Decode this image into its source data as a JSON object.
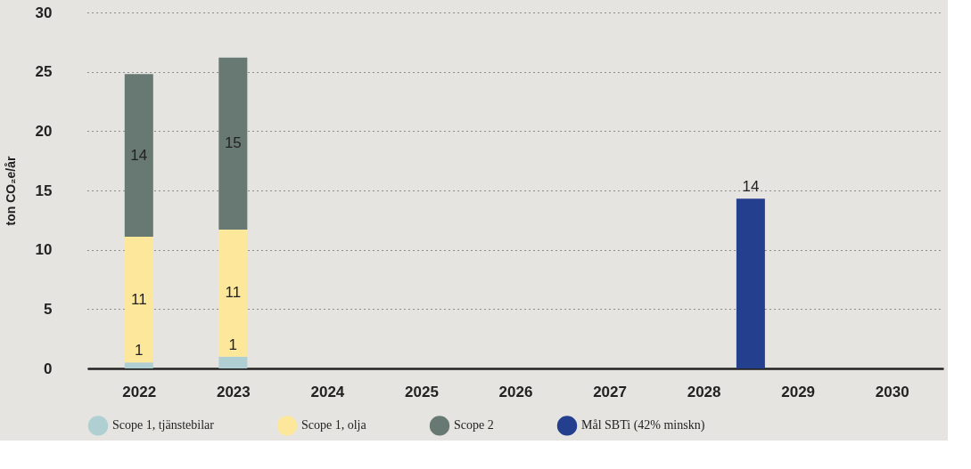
{
  "chart_data": {
    "type": "bar",
    "ylabel": "ton CO₂e/år",
    "stacked": true,
    "x": [
      2022,
      2023,
      2028.5
    ],
    "xticks": [
      2022,
      2023,
      2024,
      2025,
      2026,
      2027,
      2028,
      2029,
      2030
    ],
    "xlim": [
      2021.5,
      2030.5
    ],
    "ylim": [
      0,
      30
    ],
    "yticks": [
      0,
      5,
      10,
      15,
      20,
      25,
      30
    ],
    "grid": "y",
    "legend": "bottom",
    "series": [
      {
        "name": "Scope 1, tjänstebilar",
        "color": "#afcfd2",
        "values": [
          0.5,
          1.0,
          null
        ],
        "value_labels": [
          "1",
          "1",
          null
        ]
      },
      {
        "name": "Scope 1, olja",
        "color": "#fde79a",
        "values": [
          10.6,
          10.7,
          null
        ],
        "value_labels": [
          "11",
          "11",
          null
        ]
      },
      {
        "name": "Scope 2",
        "color": "#687974",
        "values": [
          13.7,
          14.5,
          null
        ],
        "value_labels": [
          "14",
          "15",
          null
        ]
      },
      {
        "name": "Mål SBTi (42% minskn)",
        "color": "#253f8f",
        "values": [
          null,
          null,
          14.3
        ],
        "value_labels": [
          null,
          null,
          "14"
        ]
      }
    ]
  }
}
